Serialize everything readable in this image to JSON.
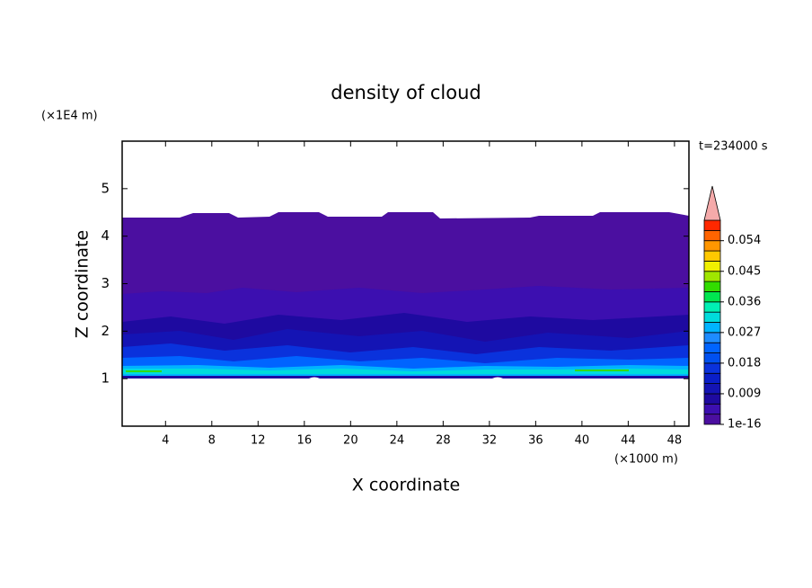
{
  "chart_data": {
    "type": "contour",
    "title": "density of cloud",
    "x_label": "X coordinate",
    "y_label": "Z coordinate",
    "x_unit": "(×1000 m)",
    "y_unit": "(×1E4 m)",
    "time_label": "t=234000 s",
    "xlim": [
      0.25,
      49.25
    ],
    "xticks": [
      4,
      8,
      12,
      16,
      20,
      24,
      28,
      32,
      36,
      40,
      44,
      48
    ],
    "ylim": [
      0,
      6
    ],
    "yticks": [
      1,
      2,
      3,
      4,
      5
    ],
    "colorbar": {
      "lim": [
        1e-16,
        0.06
      ],
      "ticks": [
        1e-16,
        0.009,
        0.018,
        0.027,
        0.036,
        0.045,
        0.054
      ],
      "colors": [
        "#4b0fa0",
        "#3c0fb0",
        "#1e0aa0",
        "#1414b4",
        "#0a1ec8",
        "#0a32dc",
        "#0050f0",
        "#0064ff",
        "#1e8cff",
        "#00b4ff",
        "#00dcdc",
        "#00f0b4",
        "#00e650",
        "#32dc00",
        "#a0e600",
        "#f0f000",
        "#ffc800",
        "#ff9600",
        "#ff6400",
        "#ff2800"
      ],
      "extend_color": "#f5aaaa"
    }
  }
}
